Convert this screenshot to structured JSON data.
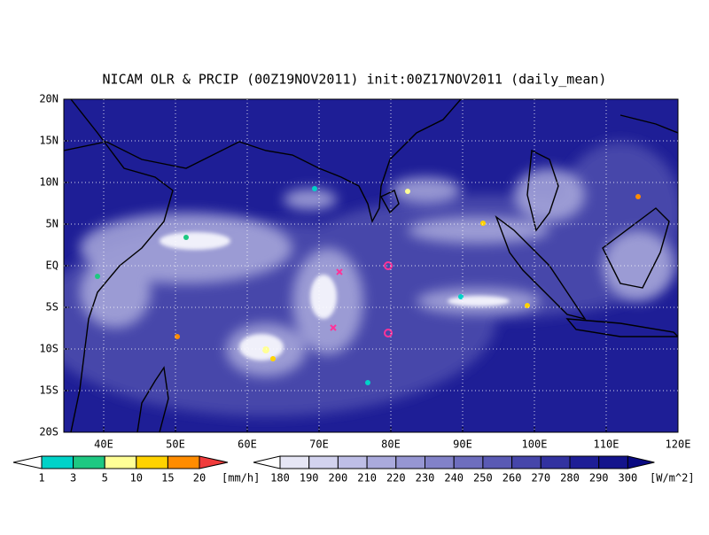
{
  "title": "NICAM OLR & PRCIP (00Z19NOV2011) init:00Z17NOV2011 (daily_mean)",
  "map": {
    "lat_ticks": [
      "20N",
      "15N",
      "10N",
      "5N",
      "EQ",
      "5S",
      "10S",
      "15S",
      "20S"
    ],
    "lon_ticks": [
      "40E",
      "50E",
      "60E",
      "70E",
      "80E",
      "90E",
      "100E",
      "110E",
      "120E"
    ]
  },
  "precip_colorbar": {
    "labels": [
      1,
      3,
      5,
      10,
      15,
      20
    ],
    "unit": "[mm/h]",
    "colors": [
      "#ffffff",
      "#00d2c8",
      "#1ec882",
      "#ffff96",
      "#ffd200",
      "#ff8c00",
      "#f03c3c"
    ]
  },
  "olr_colorbar": {
    "labels": [
      180,
      190,
      200,
      210,
      220,
      230,
      240,
      250,
      260,
      270,
      280,
      290,
      300
    ],
    "unit": "[W/m^2]",
    "colors": [
      "#ffffff",
      "#e6e6f5",
      "#d2d2ee",
      "#bebee6",
      "#aaaadc",
      "#9696d2",
      "#8282c8",
      "#6e6ebe",
      "#5a5ab4",
      "#4646aa",
      "#3232a0",
      "#1e1e96",
      "#14148c",
      "#0a0a82"
    ]
  }
}
